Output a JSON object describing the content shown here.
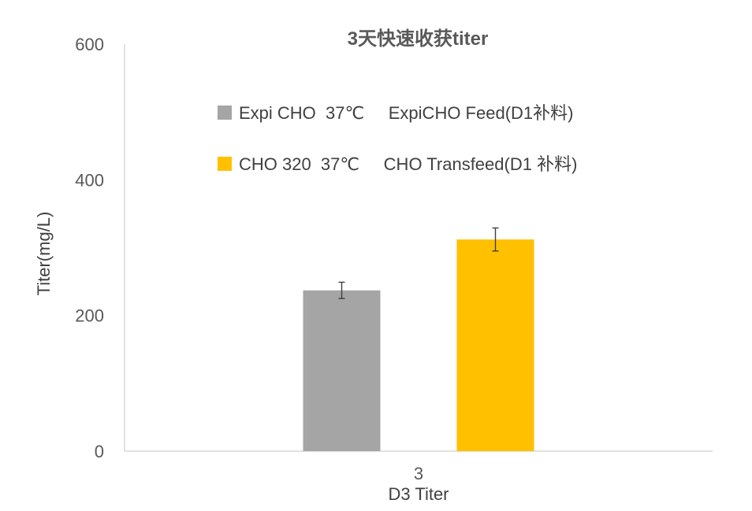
{
  "chart_data": {
    "type": "bar",
    "title": "3天快速收获titer",
    "xlabel": "D3 Titer",
    "ylabel": "Titer(mg/L)",
    "ylim": [
      0,
      600
    ],
    "yticks": [
      0,
      200,
      400,
      600
    ],
    "categories": [
      "3"
    ],
    "grid": false,
    "legend_position": "top-center",
    "series": [
      {
        "name": "Expi CHO  37℃     ExpiCHO Feed(D1补料)",
        "color": "#A5A5A5",
        "values": [
          237
        ],
        "error": [
          12
        ]
      },
      {
        "name": "CHO 320  37℃     CHO Transfeed(D1 补料)",
        "color": "#FFC000",
        "values": [
          312
        ],
        "error": [
          17
        ]
      }
    ]
  }
}
